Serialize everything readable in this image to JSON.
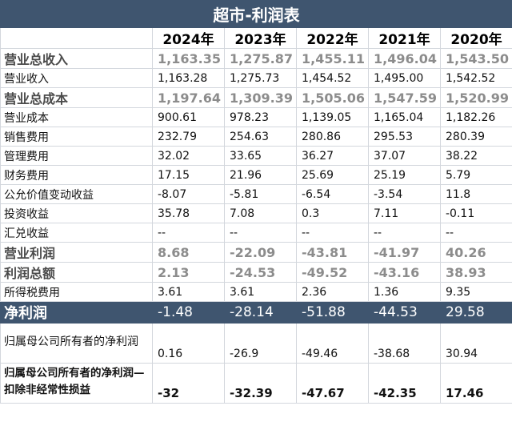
{
  "title": "超市-利润表",
  "years": [
    "2024年",
    "2023年",
    "2022年",
    "2021年",
    "2020年"
  ],
  "rows": [
    {
      "label": "营业总收入",
      "values": [
        "1,163.35",
        "1,275.87",
        "1,455.11",
        "1,496.04",
        "1,543.50"
      ]
    },
    {
      "label": "营业收入",
      "values": [
        "1,163.28",
        "1,275.73",
        "1,454.52",
        "1,495.00",
        "1,542.52"
      ]
    },
    {
      "label": "营业总成本",
      "values": [
        "1,197.64",
        "1,309.39",
        "1,505.06",
        "1,547.59",
        "1,520.99"
      ]
    },
    {
      "label": "营业成本",
      "values": [
        "900.61",
        "978.23",
        "1,139.05",
        "1,165.04",
        "1,182.26"
      ]
    },
    {
      "label": "销售费用",
      "values": [
        "232.79",
        "254.63",
        "280.86",
        "295.53",
        "280.39"
      ]
    },
    {
      "label": "管理费用",
      "values": [
        "32.02",
        "33.65",
        "36.27",
        "37.07",
        "38.22"
      ]
    },
    {
      "label": "财务费用",
      "values": [
        "17.15",
        "21.96",
        "25.69",
        "25.19",
        "5.79"
      ]
    },
    {
      "label": "公允价值变动收益",
      "values": [
        "-8.07",
        "-5.81",
        "-6.54",
        "-3.54",
        "11.8"
      ]
    },
    {
      "label": "投资收益",
      "values": [
        "35.78",
        "7.08",
        "0.3",
        "7.11",
        "-0.11"
      ]
    },
    {
      "label": "汇兑收益",
      "values": [
        "--",
        "--",
        "--",
        "--",
        "--"
      ]
    },
    {
      "label": "营业利润",
      "values": [
        "8.68",
        "-22.09",
        "-43.81",
        "-41.97",
        "40.26"
      ]
    },
    {
      "label": "利润总额",
      "values": [
        "2.13",
        "-24.53",
        "-49.52",
        "-43.16",
        "38.93"
      ]
    },
    {
      "label": "所得税费用",
      "values": [
        "3.61",
        "3.61",
        "2.36",
        "1.36",
        "9.35"
      ]
    },
    {
      "label": "净利润",
      "values": [
        "-1.48",
        "-28.14",
        "-51.88",
        "-44.53",
        "29.58"
      ]
    },
    {
      "label": "归属母公司所有者的净利润",
      "values": [
        "0.16",
        "-26.9",
        "-49.46",
        "-38.68",
        "30.94"
      ]
    },
    {
      "label": "归属母公司所有者的净利润—扣除非经常性损益",
      "values": [
        "-32",
        "-32.39",
        "-47.67",
        "-42.35",
        "17.46"
      ]
    }
  ]
}
